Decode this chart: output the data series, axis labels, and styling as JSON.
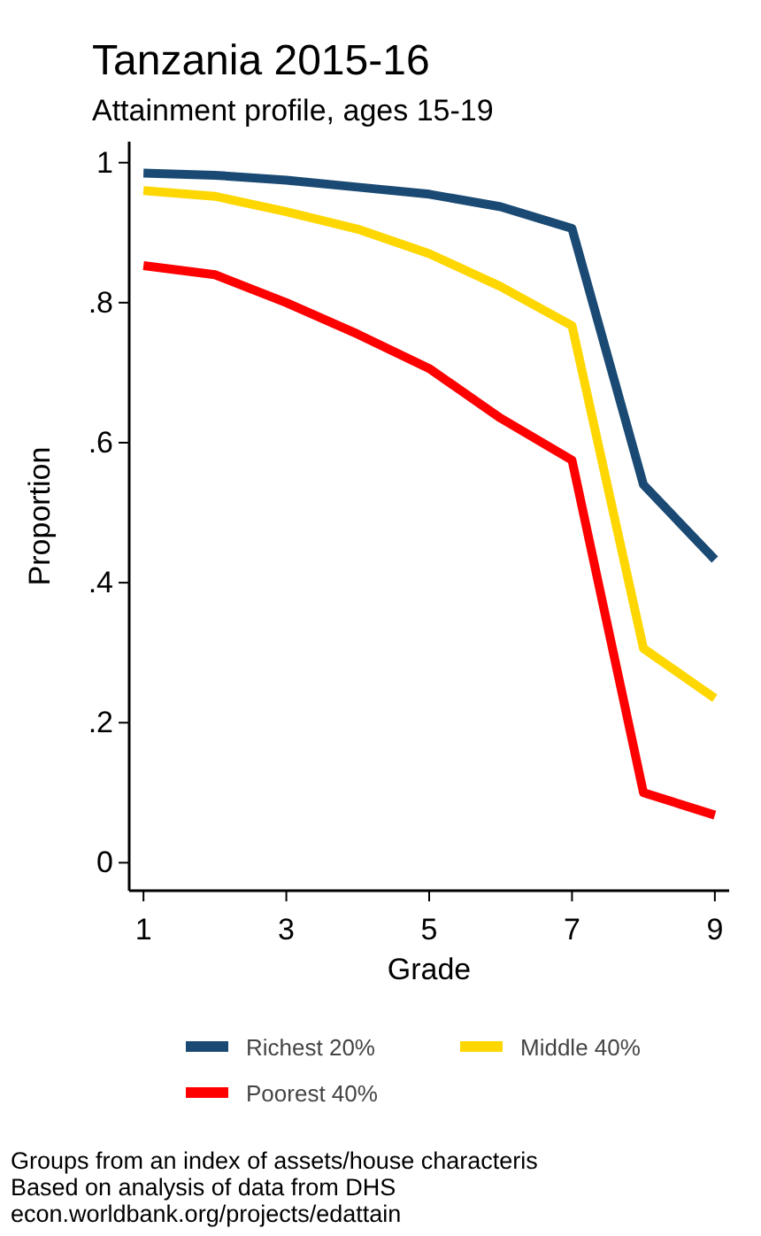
{
  "chart_data": {
    "type": "line",
    "title": "Tanzania 2015-16",
    "subtitle": "Attainment profile, ages 15-19",
    "xlabel": "Grade",
    "ylabel": "Proportion",
    "x": [
      1,
      2,
      3,
      4,
      5,
      6,
      7,
      8,
      9
    ],
    "series": [
      {
        "name": "Richest 20%",
        "color": "#1a4a73",
        "values": [
          0.985,
          0.982,
          0.975,
          0.965,
          0.955,
          0.937,
          0.906,
          0.54,
          0.433
        ]
      },
      {
        "name": "Middle 40%",
        "color": "#ffd700",
        "values": [
          0.96,
          0.952,
          0.93,
          0.905,
          0.87,
          0.823,
          0.767,
          0.306,
          0.235
        ]
      },
      {
        "name": "Poorest 40%",
        "color": "#ff0000",
        "values": [
          0.853,
          0.84,
          0.8,
          0.755,
          0.706,
          0.635,
          0.575,
          0.1,
          0.068
        ]
      }
    ],
    "xlim": [
      0.8,
      9.2
    ],
    "xticks": [
      1,
      3,
      5,
      7,
      9
    ],
    "ylim": [
      -0.04,
      1.03
    ],
    "yticks": [
      {
        "value": 0,
        "label": "0"
      },
      {
        "value": 0.2,
        "label": ".2"
      },
      {
        "value": 0.4,
        "label": ".4"
      },
      {
        "value": 0.6,
        "label": ".6"
      },
      {
        "value": 0.8,
        "label": ".8"
      },
      {
        "value": 1,
        "label": "1"
      }
    ],
    "grid": false,
    "legend": "bottom",
    "marker": "none",
    "line_style": "solid",
    "annotations": [
      "Groups from an index of assets/house characteris",
      "Based on analysis of data from DHS",
      "econ.worldbank.org/projects/edattain"
    ]
  }
}
